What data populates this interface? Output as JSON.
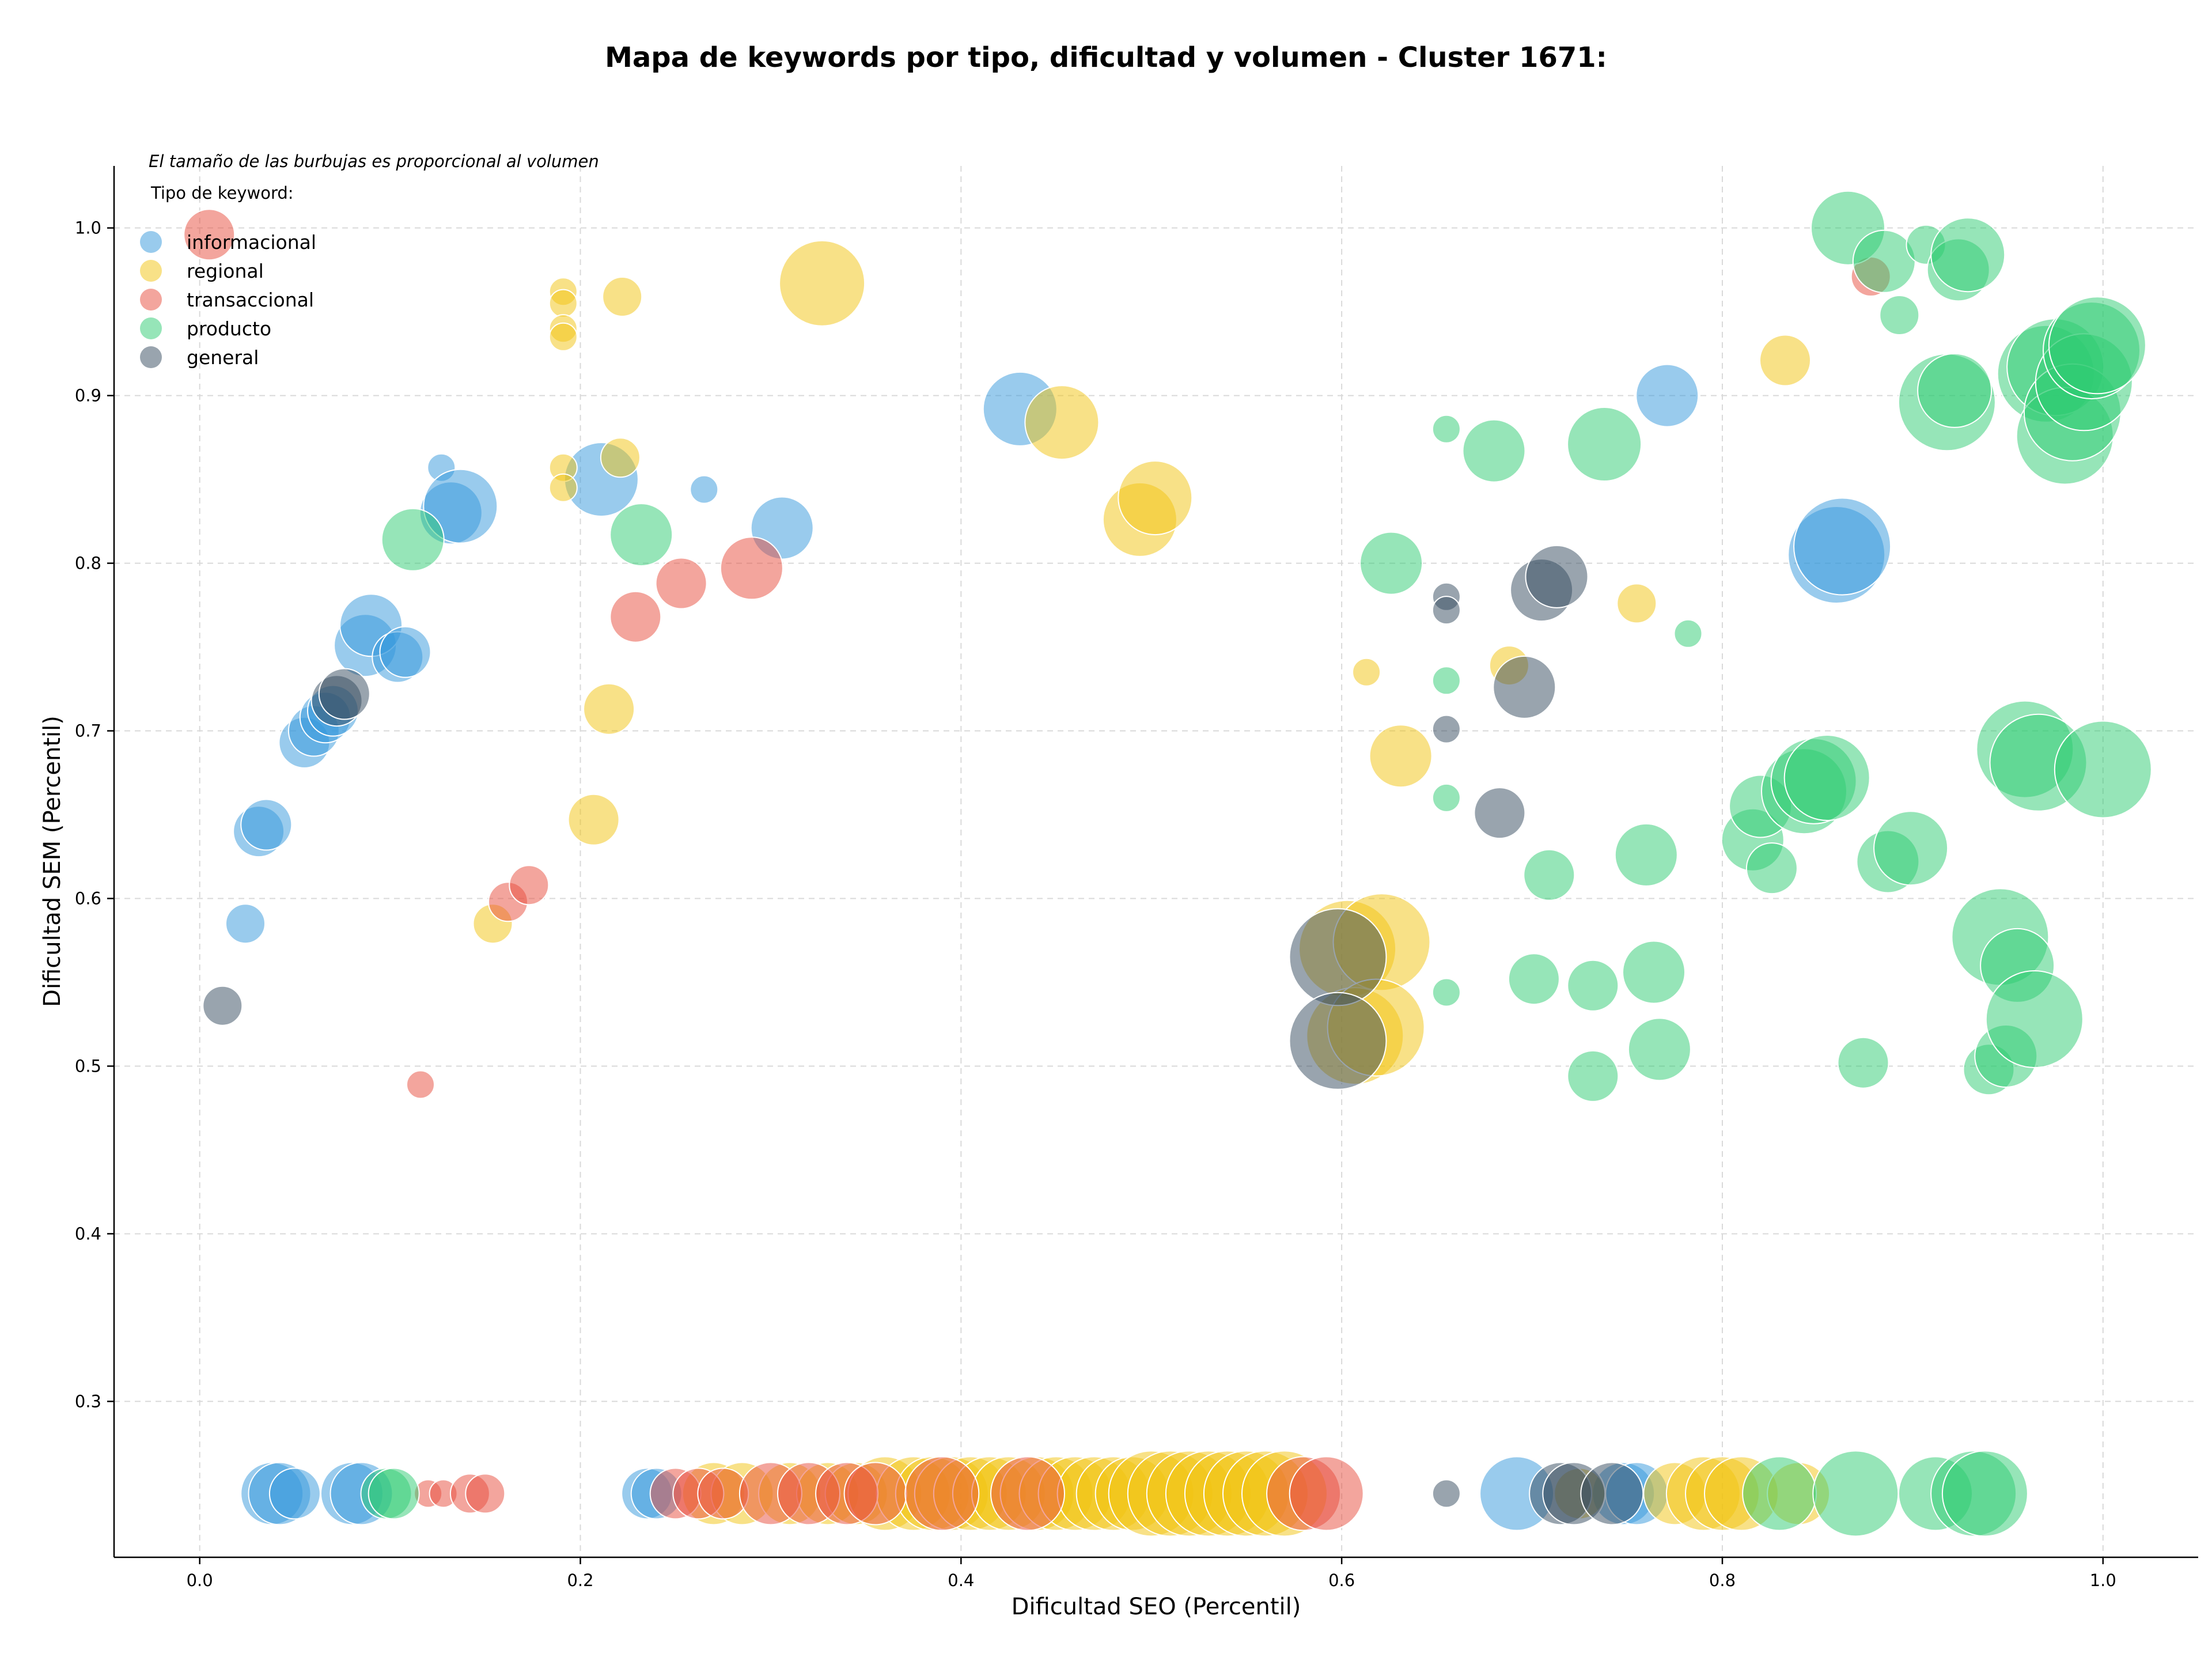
{
  "chart_data": {
    "type": "scatter",
    "title": "Mapa de keywords por tipo, dificultad y volumen - Cluster 1671:",
    "xlabel": "Dificultad SEO (Percentil)",
    "ylabel": "Dificultad SEM (Percentil)",
    "note": "El tamaño de las burbujas es proporcional al volumen",
    "xlim": [
      -0.045,
      1.05
    ],
    "ylim": [
      0.207,
      1.037
    ],
    "xticks": [
      "0.0",
      "0.2",
      "0.4",
      "0.6",
      "0.8",
      "1.0"
    ],
    "yticks": [
      "0.3",
      "0.4",
      "0.5",
      "0.6",
      "0.7",
      "0.8",
      "0.9",
      "1.0"
    ],
    "grid": true,
    "legend": {
      "title": "Tipo de keyword:",
      "position": "top-left"
    },
    "series": [
      {
        "name": "informacional",
        "color": "#3498db",
        "points": [
          [
            0.024,
            0.585,
            2
          ],
          [
            0.031,
            0.64,
            3
          ],
          [
            0.035,
            0.644,
            3
          ],
          [
            0.055,
            0.693,
            3
          ],
          [
            0.06,
            0.7,
            3
          ],
          [
            0.066,
            0.708,
            3
          ],
          [
            0.07,
            0.712,
            3
          ],
          [
            0.087,
            0.751,
            4
          ],
          [
            0.09,
            0.763,
            4
          ],
          [
            0.104,
            0.744,
            3
          ],
          [
            0.108,
            0.747,
            3
          ],
          [
            0.127,
            0.857,
            1
          ],
          [
            0.132,
            0.83,
            4
          ],
          [
            0.137,
            0.834,
            5
          ],
          [
            0.211,
            0.85,
            5
          ],
          [
            0.265,
            0.844,
            1
          ],
          [
            0.306,
            0.821,
            4
          ],
          [
            0.431,
            0.892,
            5
          ],
          [
            0.771,
            0.9,
            4
          ],
          [
            0.86,
            0.805,
            7
          ],
          [
            0.863,
            0.81,
            7
          ],
          [
            0.038,
            0.245,
            4
          ],
          [
            0.042,
            0.245,
            4
          ],
          [
            0.05,
            0.245,
            3
          ],
          [
            0.08,
            0.245,
            4
          ],
          [
            0.085,
            0.245,
            4
          ],
          [
            0.235,
            0.245,
            3
          ],
          [
            0.24,
            0.245,
            3
          ],
          [
            0.692,
            0.245,
            5
          ],
          [
            0.748,
            0.245,
            4
          ],
          [
            0.755,
            0.245,
            4
          ]
        ]
      },
      {
        "name": "regional",
        "color": "#f1c40f",
        "points": [
          [
            0.154,
            0.585,
            2
          ],
          [
            0.191,
            0.962,
            1
          ],
          [
            0.191,
            0.955,
            1
          ],
          [
            0.191,
            0.94,
            1
          ],
          [
            0.191,
            0.935,
            1
          ],
          [
            0.191,
            0.857,
            1
          ],
          [
            0.191,
            0.845,
            1
          ],
          [
            0.221,
            0.863,
            2
          ],
          [
            0.222,
            0.959,
            2
          ],
          [
            0.215,
            0.713,
            3
          ],
          [
            0.207,
            0.647,
            3
          ],
          [
            0.327,
            0.967,
            6
          ],
          [
            0.453,
            0.884,
            5
          ],
          [
            0.494,
            0.826,
            5
          ],
          [
            0.502,
            0.839,
            5
          ],
          [
            0.613,
            0.735,
            1
          ],
          [
            0.631,
            0.685,
            4
          ],
          [
            0.603,
            0.57,
            7
          ],
          [
            0.621,
            0.574,
            7
          ],
          [
            0.607,
            0.518,
            7
          ],
          [
            0.618,
            0.523,
            7
          ],
          [
            0.688,
            0.739,
            2
          ],
          [
            0.755,
            0.776,
            2
          ],
          [
            0.833,
            0.921,
            3
          ],
          [
            0.27,
            0.245,
            4
          ],
          [
            0.285,
            0.245,
            4
          ],
          [
            0.31,
            0.245,
            4
          ],
          [
            0.33,
            0.245,
            4
          ],
          [
            0.345,
            0.245,
            4
          ],
          [
            0.36,
            0.245,
            5
          ],
          [
            0.375,
            0.245,
            5
          ],
          [
            0.385,
            0.245,
            5
          ],
          [
            0.395,
            0.245,
            5
          ],
          [
            0.405,
            0.245,
            5
          ],
          [
            0.415,
            0.245,
            5
          ],
          [
            0.425,
            0.245,
            5
          ],
          [
            0.44,
            0.245,
            5
          ],
          [
            0.45,
            0.245,
            5
          ],
          [
            0.46,
            0.245,
            5
          ],
          [
            0.47,
            0.245,
            5
          ],
          [
            0.48,
            0.245,
            5
          ],
          [
            0.49,
            0.245,
            5
          ],
          [
            0.5,
            0.245,
            6
          ],
          [
            0.51,
            0.245,
            6
          ],
          [
            0.52,
            0.245,
            6
          ],
          [
            0.53,
            0.245,
            6
          ],
          [
            0.54,
            0.245,
            6
          ],
          [
            0.55,
            0.245,
            6
          ],
          [
            0.56,
            0.245,
            6
          ],
          [
            0.57,
            0.245,
            6
          ],
          [
            0.725,
            0.245,
            3
          ],
          [
            0.775,
            0.245,
            4
          ],
          [
            0.79,
            0.245,
            5
          ],
          [
            0.8,
            0.245,
            5
          ],
          [
            0.81,
            0.245,
            5
          ],
          [
            0.84,
            0.245,
            4
          ]
        ]
      },
      {
        "name": "transaccional",
        "color": "#e74c3c",
        "points": [
          [
            0.005,
            0.996,
            3
          ],
          [
            0.116,
            0.489,
            1
          ],
          [
            0.162,
            0.598,
            2
          ],
          [
            0.173,
            0.608,
            2
          ],
          [
            0.229,
            0.768,
            3
          ],
          [
            0.253,
            0.788,
            3
          ],
          [
            0.29,
            0.797,
            4
          ],
          [
            0.878,
            0.971,
            2
          ],
          [
            0.12,
            0.245,
            1
          ],
          [
            0.128,
            0.245,
            1
          ],
          [
            0.142,
            0.245,
            2
          ],
          [
            0.15,
            0.245,
            2
          ],
          [
            0.25,
            0.245,
            3
          ],
          [
            0.262,
            0.245,
            3
          ],
          [
            0.275,
            0.245,
            3
          ],
          [
            0.3,
            0.245,
            4
          ],
          [
            0.32,
            0.245,
            4
          ],
          [
            0.34,
            0.245,
            4
          ],
          [
            0.355,
            0.245,
            4
          ],
          [
            0.39,
            0.245,
            5
          ],
          [
            0.435,
            0.245,
            5
          ],
          [
            0.58,
            0.245,
            5
          ],
          [
            0.592,
            0.245,
            5
          ]
        ]
      },
      {
        "name": "producto",
        "color": "#2ecc71",
        "points": [
          [
            0.112,
            0.814,
            4
          ],
          [
            0.232,
            0.817,
            4
          ],
          [
            0.626,
            0.8,
            4
          ],
          [
            0.655,
            0.88,
            1
          ],
          [
            0.655,
            0.73,
            1
          ],
          [
            0.655,
            0.66,
            1
          ],
          [
            0.655,
            0.544,
            1
          ],
          [
            0.68,
            0.867,
            4
          ],
          [
            0.701,
            0.552,
            3
          ],
          [
            0.709,
            0.614,
            3
          ],
          [
            0.732,
            0.548,
            3
          ],
          [
            0.732,
            0.494,
            3
          ],
          [
            0.738,
            0.871,
            5
          ],
          [
            0.76,
            0.626,
            4
          ],
          [
            0.764,
            0.556,
            4
          ],
          [
            0.767,
            0.51,
            4
          ],
          [
            0.782,
            0.758,
            1
          ],
          [
            0.816,
            0.635,
            4
          ],
          [
            0.82,
            0.655,
            4
          ],
          [
            0.826,
            0.618,
            3
          ],
          [
            0.843,
            0.664,
            6
          ],
          [
            0.848,
            0.67,
            6
          ],
          [
            0.855,
            0.672,
            6
          ],
          [
            0.866,
            1.0,
            5
          ],
          [
            0.874,
            0.502,
            3
          ],
          [
            0.885,
            0.98,
            4
          ],
          [
            0.887,
            0.622,
            4
          ],
          [
            0.893,
            0.948,
            2
          ],
          [
            0.899,
            0.63,
            5
          ],
          [
            0.907,
            0.99,
            2
          ],
          [
            0.918,
            0.896,
            7
          ],
          [
            0.922,
            0.903,
            5
          ],
          [
            0.924,
            0.975,
            4
          ],
          [
            0.929,
            0.984,
            5
          ],
          [
            0.94,
            0.498,
            3
          ],
          [
            0.946,
            0.577,
            7
          ],
          [
            0.949,
            0.506,
            4
          ],
          [
            0.955,
            0.56,
            5
          ],
          [
            0.959,
            0.689,
            7
          ],
          [
            0.964,
            0.528,
            7
          ],
          [
            0.966,
            0.681,
            7
          ],
          [
            0.97,
            0.913,
            7
          ],
          [
            0.975,
            0.917,
            7
          ],
          [
            0.98,
            0.876,
            7
          ],
          [
            0.984,
            0.89,
            7
          ],
          [
            0.99,
            0.908,
            7
          ],
          [
            0.994,
            0.927,
            7
          ],
          [
            0.997,
            0.93,
            7
          ],
          [
            1.0,
            0.677,
            7
          ],
          [
            0.098,
            0.245,
            3
          ],
          [
            0.102,
            0.245,
            3
          ],
          [
            0.83,
            0.245,
            5
          ],
          [
            0.87,
            0.245,
            6
          ],
          [
            0.912,
            0.245,
            5
          ],
          [
            0.932,
            0.245,
            6
          ],
          [
            0.938,
            0.245,
            6
          ]
        ]
      },
      {
        "name": "general",
        "color": "#34495e",
        "points": [
          [
            0.012,
            0.536,
            2
          ],
          [
            0.072,
            0.718,
            3
          ],
          [
            0.076,
            0.722,
            3
          ],
          [
            0.598,
            0.565,
            7
          ],
          [
            0.598,
            0.515,
            7
          ],
          [
            0.655,
            0.78,
            1
          ],
          [
            0.655,
            0.772,
            1
          ],
          [
            0.655,
            0.701,
            1
          ],
          [
            0.683,
            0.651,
            3
          ],
          [
            0.696,
            0.726,
            4
          ],
          [
            0.705,
            0.784,
            4
          ],
          [
            0.713,
            0.792,
            4
          ],
          [
            0.655,
            0.245,
            1
          ],
          [
            0.715,
            0.245,
            4
          ],
          [
            0.722,
            0.245,
            4
          ],
          [
            0.742,
            0.245,
            4
          ]
        ]
      }
    ]
  }
}
